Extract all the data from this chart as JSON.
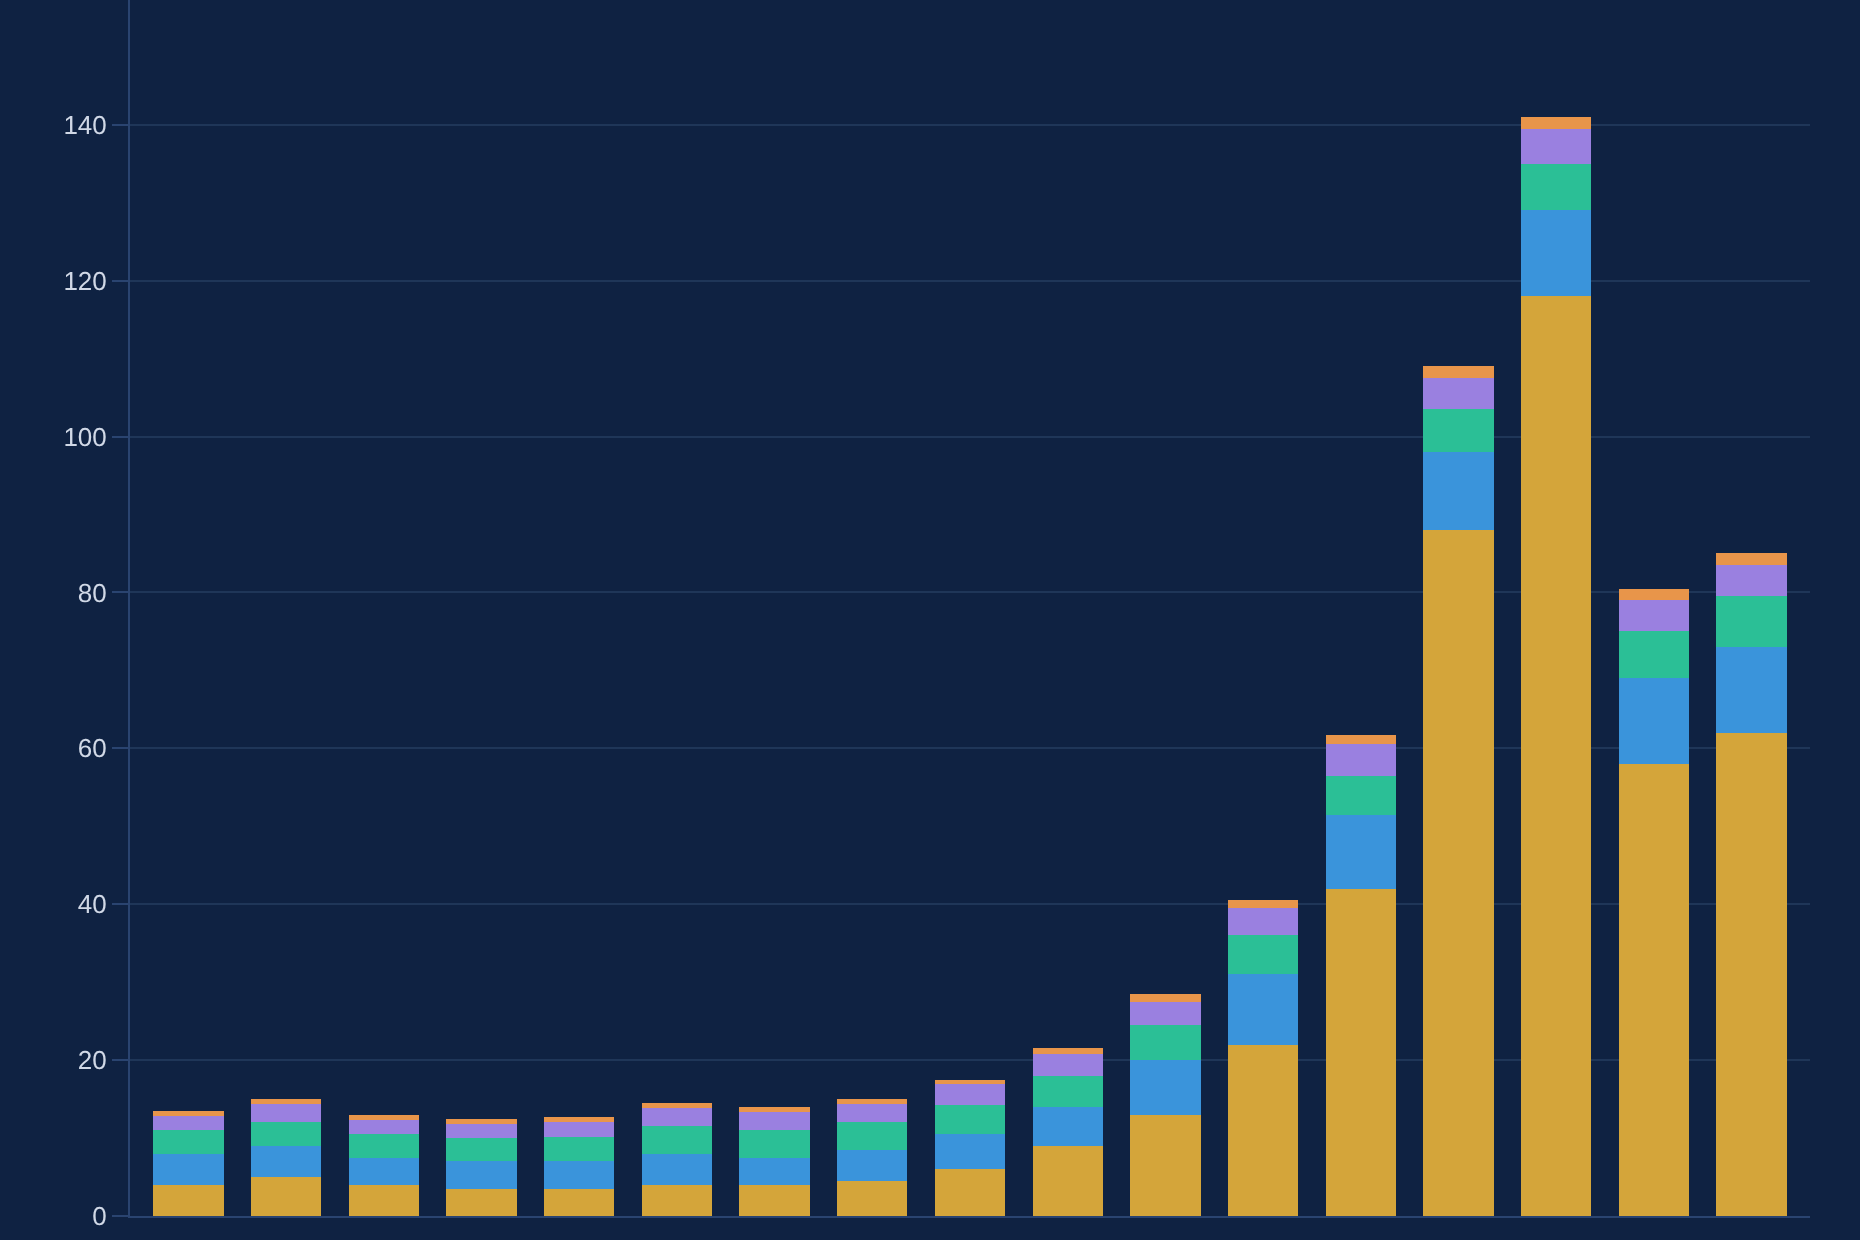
{
  "chart_data": {
    "type": "bar",
    "stacked": true,
    "categories": [
      null,
      null,
      null,
      null,
      null,
      null,
      null,
      null,
      null,
      null,
      null,
      null,
      null,
      null,
      null,
      null,
      null
    ],
    "series": [
      {
        "color": "#d4a53a",
        "values": [
          4,
          5,
          4,
          3.5,
          3.5,
          4,
          4,
          4.5,
          6,
          9,
          13,
          22,
          42,
          88,
          118,
          58,
          62
        ]
      },
      {
        "color": "#3a94db",
        "values": [
          4,
          4,
          3.5,
          3.5,
          3.5,
          4,
          3.5,
          4,
          4.5,
          5,
          7,
          9,
          9.5,
          10,
          11,
          11,
          11
        ]
      },
      {
        "color": "#2bbf96",
        "values": [
          3,
          3,
          3,
          3,
          3.2,
          3.5,
          3.5,
          3.5,
          3.7,
          4,
          4.5,
          5,
          5,
          5.5,
          6,
          6,
          6.5
        ]
      },
      {
        "color": "#9a80e0",
        "values": [
          2,
          2.5,
          2,
          2,
          2,
          2.5,
          2.5,
          2.5,
          2.8,
          3,
          3,
          3.5,
          4,
          4,
          4.5,
          4,
          4
        ]
      },
      {
        "color": "#e8954a",
        "values": [
          0.5,
          0.5,
          0.5,
          0.5,
          0.5,
          0.5,
          0.5,
          0.5,
          0.5,
          0.5,
          1,
          1,
          1.2,
          1.5,
          1.5,
          1.5,
          1.5
        ]
      }
    ],
    "ylim": [
      0,
      156
    ],
    "yticks": [
      0,
      20,
      40,
      60,
      80,
      100,
      120,
      140
    ],
    "grid": "y",
    "tick_labels": "y"
  }
}
